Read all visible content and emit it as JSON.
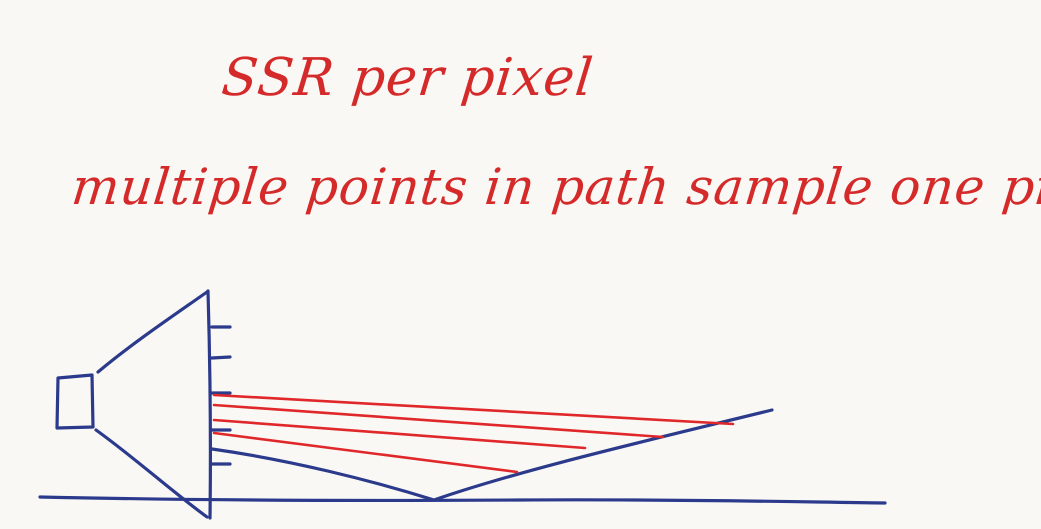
{
  "notes": {
    "line1": "SSR per pixel",
    "line2": "multiple points in path sample one pixel"
  },
  "colors": {
    "ink_red": "#d42a2a",
    "ink_blue": "#2c3a8c",
    "paper": "#faf8f5"
  }
}
